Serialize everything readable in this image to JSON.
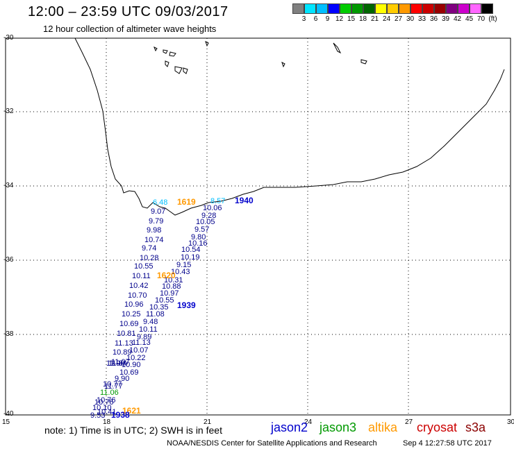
{
  "header": {
    "title": "12:00 – 23:59 UTC 09/03/2017",
    "subtitle": "12 hour collection of altimeter wave heights"
  },
  "scale": {
    "colors": [
      "#808080",
      "#00e5ff",
      "#00bfff",
      "#0000ff",
      "#00cc00",
      "#009900",
      "#006600",
      "#ffff00",
      "#ffcc00",
      "#ff9900",
      "#ff0000",
      "#cc0000",
      "#990000",
      "#800080",
      "#cc00cc",
      "#ff66ff",
      "#000000"
    ],
    "labels": [
      "3",
      "6",
      "9",
      "12",
      "15",
      "18",
      "21",
      "24",
      "27",
      "30",
      "33",
      "36",
      "39",
      "42",
      "45",
      "70",
      "(ft)"
    ]
  },
  "axes": {
    "lat_labels": [
      "-30",
      "-32",
      "-34",
      "-36",
      "-38",
      "-40"
    ],
    "lon_labels": [
      "15",
      "18",
      "21",
      "24",
      "27",
      "30"
    ]
  },
  "observations": [
    {
      "v": "6.48",
      "c": "#00bfff"
    },
    {
      "v": "9.07",
      "c": "#00008B"
    },
    {
      "v": "9.79",
      "c": "#00008B"
    },
    {
      "v": "9.98",
      "c": "#00008B"
    },
    {
      "v": "10.74",
      "c": "#00008B"
    },
    {
      "v": "9.74",
      "c": "#00008B"
    },
    {
      "v": "10.28",
      "c": "#00008B"
    },
    {
      "v": "10.55",
      "c": "#00008B"
    },
    {
      "v": "10.11",
      "c": "#00008B"
    },
    {
      "v": "10.42",
      "c": "#00008B"
    },
    {
      "v": "10.70",
      "c": "#00008B"
    },
    {
      "v": "10.96",
      "c": "#00008B"
    },
    {
      "v": "10.25",
      "c": "#00008B"
    },
    {
      "v": "10.69",
      "c": "#00008B"
    },
    {
      "v": "10.81",
      "c": "#00008B"
    },
    {
      "v": "11.13",
      "c": "#00008B"
    },
    {
      "v": "10.89",
      "c": "#00008B"
    },
    {
      "v": "11.07",
      "c": "#00008B"
    },
    {
      "v": "11.84",
      "c": "#00008B"
    },
    {
      "v": "11.90",
      "c": "#00008B"
    },
    {
      "v": "11.77",
      "c": "#00008B"
    },
    {
      "v": "10.77",
      "c": "#00008B"
    },
    {
      "v": "11.06",
      "c": "#009900"
    },
    {
      "v": "10.76",
      "c": "#00008B"
    },
    {
      "v": "10.10",
      "c": "#00008B"
    },
    {
      "v": "9.53",
      "c": "#00008B"
    },
    {
      "v": "8.57",
      "c": "#00bfff"
    },
    {
      "v": "10.06",
      "c": "#00008B"
    },
    {
      "v": "9.28",
      "c": "#00008B"
    },
    {
      "v": "10.05",
      "c": "#00008B"
    },
    {
      "v": "9.57",
      "c": "#00008B"
    },
    {
      "v": "9.80",
      "c": "#00008B"
    },
    {
      "v": "10.16",
      "c": "#00008B"
    },
    {
      "v": "10.54",
      "c": "#00008B"
    },
    {
      "v": "10.19",
      "c": "#00008B"
    },
    {
      "v": "9.15",
      "c": "#00008B"
    },
    {
      "v": "10.43",
      "c": "#00008B"
    },
    {
      "v": "10.31",
      "c": "#00008B"
    },
    {
      "v": "10.88",
      "c": "#00008B"
    },
    {
      "v": "10.97",
      "c": "#00008B"
    },
    {
      "v": "10.55",
      "c": "#00008B"
    },
    {
      "v": "10.35",
      "c": "#00008B"
    },
    {
      "v": "11.08",
      "c": "#00008B"
    },
    {
      "v": "9.48",
      "c": "#00008B"
    },
    {
      "v": "10.11",
      "c": "#00008B"
    },
    {
      "v": "9.89",
      "c": "#00008B"
    },
    {
      "v": "11.13",
      "c": "#00008B"
    },
    {
      "v": "10.07",
      "c": "#00008B"
    },
    {
      "v": "10.22",
      "c": "#00008B"
    },
    {
      "v": "10.90",
      "c": "#00008B"
    },
    {
      "v": "10.69",
      "c": "#00008B"
    },
    {
      "v": "9.90",
      "c": "#00008B"
    },
    {
      "v": "10.41",
      "c": "#00008B"
    },
    {
      "v": "10.76",
      "c": "#00008B"
    }
  ],
  "time_marks": [
    {
      "t": "1619",
      "c": "#ff9900"
    },
    {
      "t": "1940",
      "c": "#0000cc"
    },
    {
      "t": "1620",
      "c": "#ff9900"
    },
    {
      "t": "1939",
      "c": "#0000cc"
    },
    {
      "t": "1621",
      "c": "#ff9900"
    },
    {
      "t": "1938",
      "c": "#0000cc"
    }
  ],
  "footer": {
    "note": "note: 1) Time is in UTC; 2) SWH is in feet",
    "legend": [
      {
        "name": "jason2",
        "color": "#0000cc"
      },
      {
        "name": "jason3",
        "color": "#009900"
      },
      {
        "name": "altika",
        "color": "#ff9900"
      },
      {
        "name": "cryosat",
        "color": "#cc0000"
      },
      {
        "name": "s3a",
        "color": "#8b0000"
      }
    ],
    "credit": "NOAA/NESDIS Center for Satellite Applications and Research",
    "timestamp": "Sep  4 12:27:58 UTC 2017"
  }
}
